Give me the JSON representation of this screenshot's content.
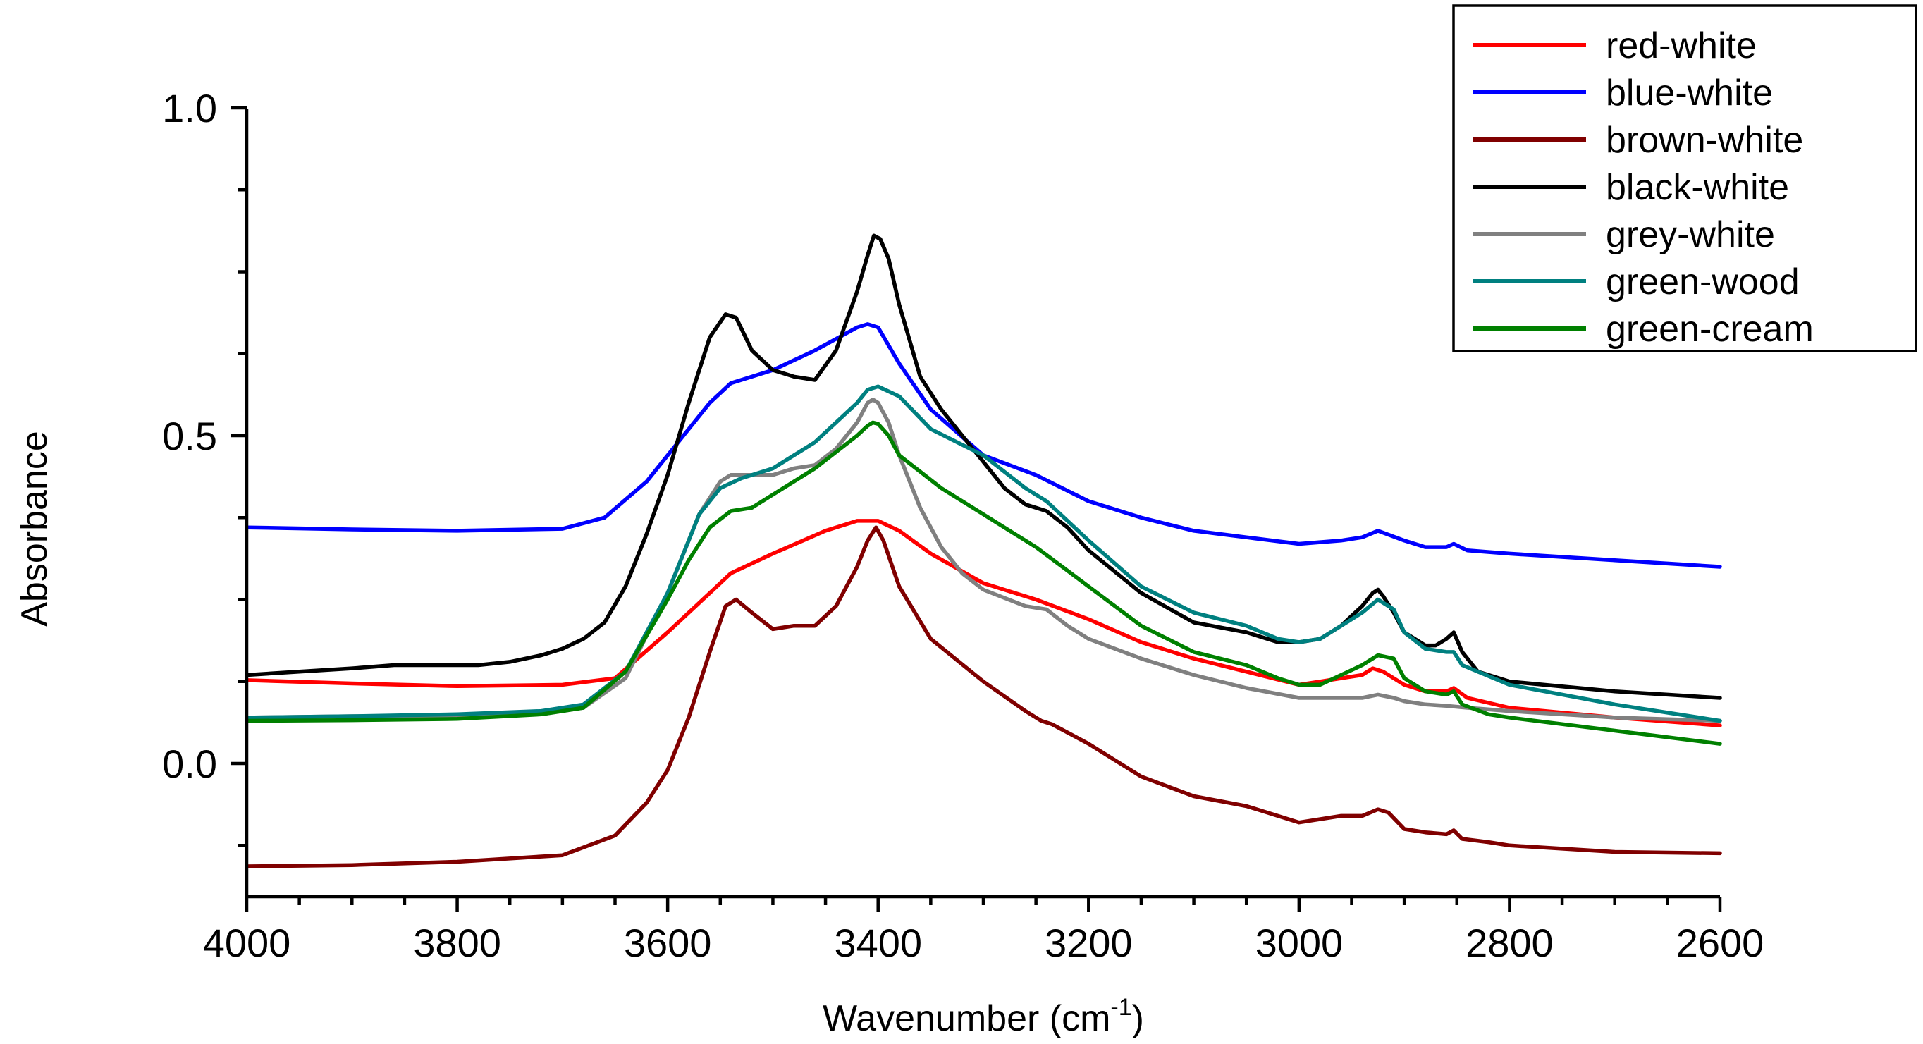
{
  "chart_data": {
    "type": "line",
    "title": "",
    "xlabel_main": "Wavenumber (cm",
    "xlabel_sup": "-1",
    "xlabel_close": ")",
    "ylabel": "Absorbance",
    "xlim": [
      4000,
      2600
    ],
    "ylim": [
      -0.2,
      1.0
    ],
    "x_ticks": [
      4000,
      3800,
      3600,
      3400,
      3200,
      3000,
      2800,
      2600
    ],
    "x_tick_labels": [
      "4000",
      "3800",
      "3600",
      "3400",
      "3200",
      "3000",
      "2800",
      "2600"
    ],
    "y_ticks": [
      1.0,
      0.5,
      0.0
    ],
    "y_tick_labels": [
      "1.0",
      "0.5",
      "0.0"
    ],
    "legend_position": "top-right",
    "series": [
      {
        "name": "red-white",
        "color": "#ff0000",
        "x": [
          4000,
          3900,
          3800,
          3700,
          3650,
          3600,
          3560,
          3540,
          3500,
          3450,
          3420,
          3400,
          3380,
          3350,
          3300,
          3250,
          3200,
          3150,
          3100,
          3050,
          3000,
          2980,
          2960,
          2940,
          2930,
          2920,
          2900,
          2880,
          2860,
          2853,
          2840,
          2800,
          2700,
          2600
        ],
        "y": [
          0.127,
          0.122,
          0.118,
          0.12,
          0.13,
          0.2,
          0.26,
          0.29,
          0.32,
          0.355,
          0.37,
          0.37,
          0.355,
          0.32,
          0.275,
          0.25,
          0.22,
          0.185,
          0.16,
          0.14,
          0.12,
          0.125,
          0.13,
          0.135,
          0.145,
          0.14,
          0.12,
          0.11,
          0.11,
          0.115,
          0.1,
          0.085,
          0.07,
          0.058
        ]
      },
      {
        "name": "blue-white",
        "color": "#0000ff",
        "x": [
          4000,
          3900,
          3800,
          3700,
          3660,
          3620,
          3580,
          3560,
          3540,
          3500,
          3460,
          3420,
          3410,
          3400,
          3380,
          3350,
          3300,
          3250,
          3200,
          3150,
          3100,
          3050,
          3000,
          2960,
          2940,
          2925,
          2900,
          2880,
          2860,
          2853,
          2840,
          2800,
          2700,
          2600
        ],
        "y": [
          0.36,
          0.357,
          0.355,
          0.358,
          0.375,
          0.43,
          0.51,
          0.55,
          0.58,
          0.6,
          0.63,
          0.665,
          0.67,
          0.665,
          0.61,
          0.54,
          0.47,
          0.44,
          0.4,
          0.375,
          0.355,
          0.345,
          0.335,
          0.34,
          0.345,
          0.355,
          0.34,
          0.33,
          0.33,
          0.335,
          0.325,
          0.32,
          0.31,
          0.3
        ]
      },
      {
        "name": "brown-white",
        "color": "#800000",
        "x": [
          4000,
          3900,
          3800,
          3700,
          3650,
          3620,
          3600,
          3580,
          3560,
          3545,
          3535,
          3520,
          3500,
          3480,
          3460,
          3440,
          3420,
          3410,
          3402,
          3395,
          3380,
          3350,
          3300,
          3260,
          3245,
          3235,
          3200,
          3150,
          3100,
          3050,
          3000,
          2960,
          2940,
          2925,
          2915,
          2900,
          2880,
          2860,
          2853,
          2845,
          2820,
          2800,
          2700,
          2600
        ],
        "y": [
          -0.157,
          -0.155,
          -0.15,
          -0.14,
          -0.11,
          -0.06,
          -0.01,
          0.07,
          0.17,
          0.24,
          0.25,
          0.23,
          0.205,
          0.21,
          0.21,
          0.24,
          0.3,
          0.34,
          0.36,
          0.34,
          0.27,
          0.19,
          0.125,
          0.08,
          0.065,
          0.06,
          0.03,
          -0.02,
          -0.05,
          -0.065,
          -0.09,
          -0.08,
          -0.08,
          -0.07,
          -0.075,
          -0.1,
          -0.105,
          -0.108,
          -0.102,
          -0.115,
          -0.12,
          -0.125,
          -0.135,
          -0.137
        ]
      },
      {
        "name": "black-white",
        "color": "#000000",
        "x": [
          4000,
          3950,
          3900,
          3860,
          3820,
          3780,
          3750,
          3720,
          3700,
          3680,
          3660,
          3640,
          3620,
          3600,
          3580,
          3560,
          3545,
          3535,
          3520,
          3500,
          3480,
          3460,
          3440,
          3420,
          3410,
          3404,
          3398,
          3390,
          3380,
          3360,
          3340,
          3320,
          3300,
          3280,
          3260,
          3250,
          3240,
          3220,
          3200,
          3150,
          3100,
          3050,
          3020,
          3000,
          2980,
          2960,
          2940,
          2930,
          2925,
          2920,
          2910,
          2900,
          2880,
          2870,
          2860,
          2853,
          2845,
          2830,
          2800,
          2700,
          2600
        ],
        "y": [
          0.135,
          0.14,
          0.145,
          0.15,
          0.15,
          0.15,
          0.155,
          0.165,
          0.175,
          0.19,
          0.215,
          0.27,
          0.35,
          0.44,
          0.55,
          0.65,
          0.685,
          0.68,
          0.63,
          0.6,
          0.59,
          0.585,
          0.63,
          0.72,
          0.775,
          0.805,
          0.8,
          0.77,
          0.7,
          0.59,
          0.54,
          0.5,
          0.46,
          0.42,
          0.395,
          0.39,
          0.385,
          0.36,
          0.325,
          0.26,
          0.215,
          0.2,
          0.185,
          0.185,
          0.19,
          0.21,
          0.24,
          0.26,
          0.265,
          0.255,
          0.23,
          0.2,
          0.18,
          0.18,
          0.19,
          0.2,
          0.17,
          0.14,
          0.125,
          0.11,
          0.1
        ]
      },
      {
        "name": "grey-white",
        "color": "#808080",
        "x": [
          4000,
          3900,
          3800,
          3720,
          3680,
          3640,
          3600,
          3570,
          3550,
          3540,
          3520,
          3500,
          3480,
          3460,
          3440,
          3420,
          3410,
          3405,
          3400,
          3390,
          3380,
          3360,
          3340,
          3320,
          3300,
          3260,
          3240,
          3220,
          3200,
          3150,
          3100,
          3050,
          3000,
          2960,
          2940,
          2925,
          2910,
          2900,
          2880,
          2860,
          2840,
          2800,
          2700,
          2600
        ],
        "y": [
          0.07,
          0.072,
          0.072,
          0.075,
          0.085,
          0.13,
          0.26,
          0.38,
          0.43,
          0.44,
          0.44,
          0.44,
          0.45,
          0.455,
          0.48,
          0.52,
          0.55,
          0.555,
          0.55,
          0.52,
          0.47,
          0.39,
          0.33,
          0.29,
          0.265,
          0.24,
          0.235,
          0.21,
          0.19,
          0.16,
          0.135,
          0.115,
          0.1,
          0.1,
          0.1,
          0.105,
          0.1,
          0.095,
          0.09,
          0.088,
          0.085,
          0.08,
          0.07,
          0.065
        ]
      },
      {
        "name": "green-wood",
        "color": "#008080",
        "x": [
          4000,
          3900,
          3800,
          3720,
          3680,
          3640,
          3600,
          3570,
          3550,
          3530,
          3500,
          3460,
          3420,
          3410,
          3400,
          3380,
          3350,
          3300,
          3260,
          3240,
          3200,
          3150,
          3100,
          3050,
          3020,
          3000,
          2980,
          2960,
          2940,
          2925,
          2910,
          2900,
          2880,
          2860,
          2853,
          2845,
          2800,
          2700,
          2600
        ],
        "y": [
          0.07,
          0.072,
          0.075,
          0.08,
          0.09,
          0.14,
          0.26,
          0.38,
          0.42,
          0.435,
          0.45,
          0.49,
          0.55,
          0.57,
          0.575,
          0.56,
          0.51,
          0.47,
          0.42,
          0.4,
          0.34,
          0.27,
          0.23,
          0.21,
          0.19,
          0.185,
          0.19,
          0.21,
          0.23,
          0.25,
          0.235,
          0.2,
          0.175,
          0.17,
          0.17,
          0.15,
          0.12,
          0.09,
          0.065
        ]
      },
      {
        "name": "green-cream",
        "color": "#008000",
        "x": [
          4000,
          3900,
          3800,
          3720,
          3680,
          3640,
          3600,
          3580,
          3560,
          3540,
          3520,
          3500,
          3460,
          3420,
          3410,
          3405,
          3400,
          3390,
          3380,
          3360,
          3340,
          3300,
          3250,
          3200,
          3150,
          3100,
          3050,
          3020,
          3000,
          2980,
          2960,
          2940,
          2925,
          2910,
          2900,
          2880,
          2860,
          2853,
          2845,
          2820,
          2800,
          2700,
          2600
        ],
        "y": [
          0.065,
          0.066,
          0.068,
          0.075,
          0.085,
          0.14,
          0.25,
          0.31,
          0.36,
          0.385,
          0.39,
          0.41,
          0.45,
          0.5,
          0.515,
          0.52,
          0.518,
          0.5,
          0.47,
          0.445,
          0.42,
          0.38,
          0.33,
          0.27,
          0.21,
          0.17,
          0.15,
          0.13,
          0.12,
          0.12,
          0.135,
          0.15,
          0.165,
          0.16,
          0.13,
          0.11,
          0.105,
          0.11,
          0.09,
          0.075,
          0.07,
          0.05,
          0.03
        ]
      }
    ]
  }
}
